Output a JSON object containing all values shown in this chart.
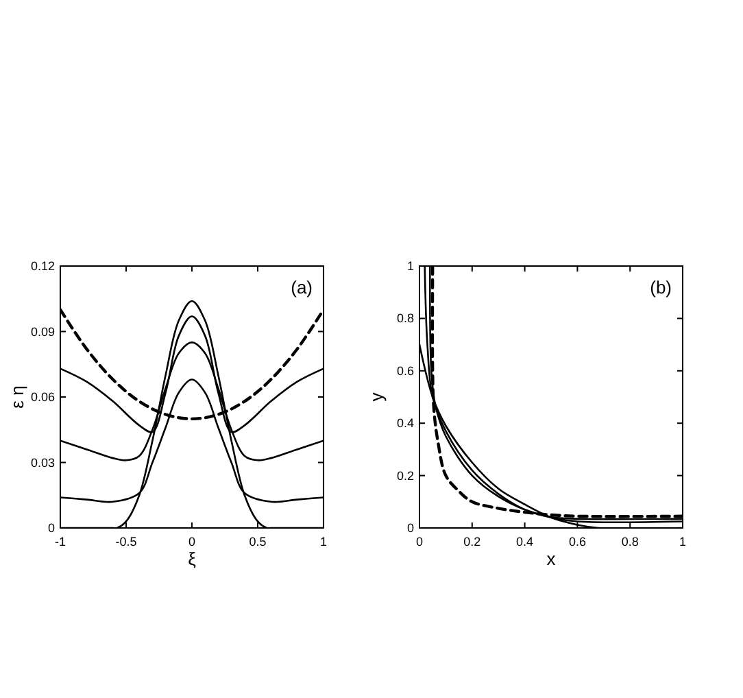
{
  "chart_data": [
    {
      "type": "line",
      "xlabel": "ξ",
      "ylabel": "ε η",
      "xlim": [
        -1,
        1
      ],
      "ylim": [
        0,
        0.12
      ],
      "xticks": [
        -1,
        -0.5,
        0,
        0.5,
        1
      ],
      "yticks": [
        0,
        0.03,
        0.06,
        0.09,
        0.12
      ],
      "annotations": [
        "(a)"
      ],
      "grid": false,
      "series": [
        {
          "color": "#000000",
          "line_style": "solid",
          "x": [
            -1,
            -0.8,
            -0.6,
            -0.57,
            -0.5,
            -0.4,
            -0.3,
            -0.2,
            -0.1,
            0,
            0.1,
            0.2,
            0.3,
            0.4,
            0.5,
            0.57,
            0.6,
            0.8,
            1
          ],
          "values": [
            0,
            0,
            0,
            0,
            0.003,
            0.015,
            0.04,
            0.07,
            0.095,
            0.104,
            0.095,
            0.07,
            0.04,
            0.015,
            0.003,
            0,
            0,
            0,
            0
          ]
        },
        {
          "color": "#000000",
          "line_style": "solid",
          "x": [
            -1,
            -0.8,
            -0.6,
            -0.4,
            -0.3,
            -0.2,
            -0.1,
            0,
            0.1,
            0.2,
            0.3,
            0.4,
            0.6,
            0.8,
            1
          ],
          "values": [
            0.073,
            0.067,
            0.058,
            0.047,
            0.044,
            0.062,
            0.088,
            0.097,
            0.088,
            0.062,
            0.044,
            0.047,
            0.058,
            0.067,
            0.073
          ]
        },
        {
          "color": "#000000",
          "line_style": "solid",
          "x": [
            -1,
            -0.8,
            -0.6,
            -0.5,
            -0.4,
            -0.3,
            -0.2,
            -0.1,
            0,
            0.1,
            0.2,
            0.3,
            0.4,
            0.5,
            0.6,
            0.8,
            1
          ],
          "values": [
            0.04,
            0.036,
            0.032,
            0.031,
            0.033,
            0.045,
            0.064,
            0.08,
            0.085,
            0.08,
            0.064,
            0.045,
            0.033,
            0.031,
            0.032,
            0.036,
            0.04
          ]
        },
        {
          "color": "#000000",
          "line_style": "solid",
          "x": [
            -1,
            -0.8,
            -0.6,
            -0.4,
            -0.3,
            -0.2,
            -0.1,
            0,
            0.1,
            0.2,
            0.3,
            0.4,
            0.6,
            0.8,
            1
          ],
          "values": [
            0.014,
            0.013,
            0.012,
            0.016,
            0.03,
            0.046,
            0.062,
            0.068,
            0.062,
            0.046,
            0.03,
            0.016,
            0.012,
            0.013,
            0.014
          ]
        },
        {
          "color": "#000000",
          "line_style": "dashed",
          "x": [
            -1,
            -0.8,
            -0.6,
            -0.4,
            -0.2,
            0,
            0.2,
            0.4,
            0.6,
            0.8,
            1
          ],
          "values": [
            0.1,
            0.082,
            0.068,
            0.058,
            0.052,
            0.05,
            0.052,
            0.058,
            0.068,
            0.082,
            0.1
          ]
        }
      ]
    },
    {
      "type": "line",
      "xlabel": "x",
      "ylabel": "y",
      "xlim": [
        0,
        1
      ],
      "ylim": [
        0,
        1
      ],
      "xticks": [
        0,
        0.2,
        0.4,
        0.6,
        0.8,
        1
      ],
      "yticks": [
        0,
        0.2,
        0.4,
        0.6,
        0.8,
        1
      ],
      "annotations": [
        "(b)"
      ],
      "grid": false,
      "series": [
        {
          "color": "#000000",
          "line_style": "solid",
          "x": [
            0,
            0.05,
            0.1,
            0.2,
            0.3,
            0.4,
            0.5,
            0.6,
            0.68,
            1
          ],
          "values": [
            0.7,
            0.5,
            0.39,
            0.25,
            0.15,
            0.09,
            0.04,
            0.012,
            0,
            0
          ]
        },
        {
          "color": "#000000",
          "line_style": "solid",
          "x": [
            0.02,
            0.03,
            0.05,
            0.1,
            0.2,
            0.3,
            0.4,
            0.5,
            0.6,
            1
          ],
          "values": [
            1,
            0.7,
            0.5,
            0.37,
            0.22,
            0.13,
            0.07,
            0.04,
            0.025,
            0.025
          ]
        },
        {
          "color": "#000000",
          "line_style": "solid",
          "x": [
            0.04,
            0.045,
            0.06,
            0.1,
            0.2,
            0.3,
            0.4,
            0.5,
            0.6,
            1
          ],
          "values": [
            1,
            0.6,
            0.47,
            0.35,
            0.2,
            0.12,
            0.07,
            0.042,
            0.035,
            0.035
          ]
        },
        {
          "color": "#000000",
          "line_style": "dashed",
          "x": [
            0.05,
            0.05,
            0.055,
            0.07,
            0.1,
            0.15,
            0.2,
            0.3,
            0.4,
            0.5,
            0.6,
            1
          ],
          "values": [
            1,
            0.6,
            0.45,
            0.33,
            0.2,
            0.14,
            0.1,
            0.075,
            0.06,
            0.05,
            0.045,
            0.045
          ]
        }
      ]
    }
  ]
}
